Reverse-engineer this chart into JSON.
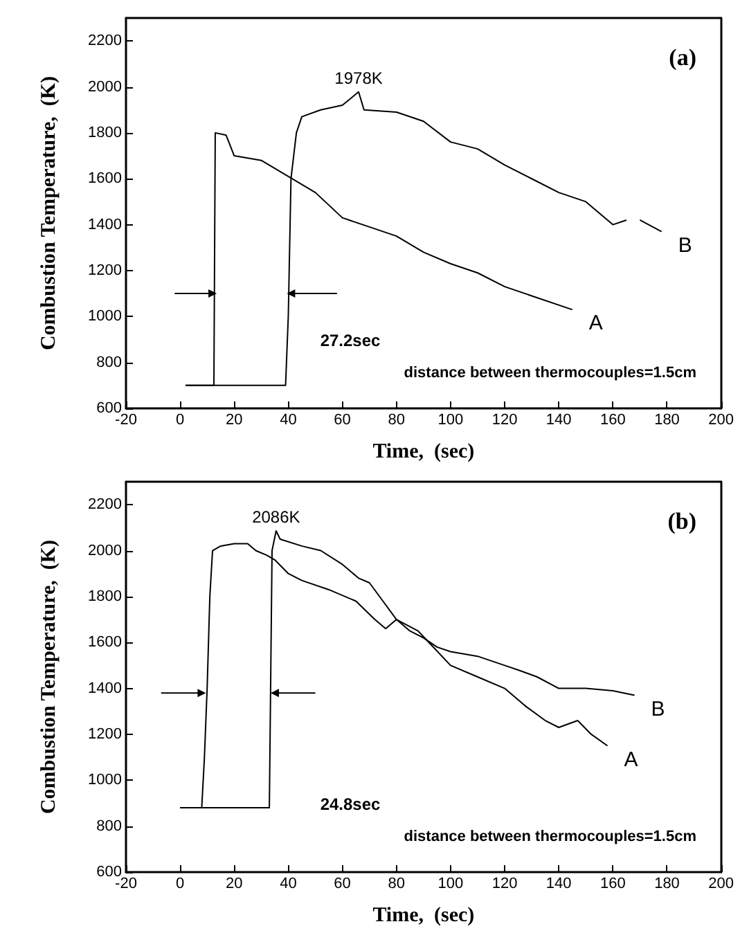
{
  "chart_data": [
    {
      "type": "line",
      "xlabel": "Time,  (sec)",
      "ylabel": "Combustion Temperature,  (K)",
      "xlim": [
        -20,
        200
      ],
      "xticks": [
        -20,
        0,
        20,
        40,
        60,
        80,
        100,
        120,
        140,
        160,
        180,
        200
      ],
      "ylim": [
        600,
        2300
      ],
      "yticks": [
        600,
        800,
        1000,
        1200,
        1400,
        1600,
        1800,
        2000,
        2200
      ],
      "grid": false,
      "legend": false,
      "marker": "none",
      "line_style": "solid",
      "series": [
        {
          "name": "A",
          "color": "#000000",
          "x": [
            2,
            12.5,
            13,
            17,
            20,
            30,
            40,
            50,
            60,
            70,
            80,
            90,
            100,
            110,
            120,
            130,
            145
          ],
          "values": [
            700,
            700,
            1800,
            1790,
            1700,
            1680,
            1610,
            1540,
            1430,
            1390,
            1350,
            1280,
            1230,
            1190,
            1130,
            1090,
            1030
          ]
        },
        {
          "name": "B",
          "color": "#000000",
          "x": [
            2,
            39,
            40,
            41,
            43,
            45,
            52,
            60,
            66,
            68,
            80,
            90,
            100,
            110,
            120,
            130,
            140,
            150,
            160,
            165,
            166,
            170,
            178
          ],
          "values": [
            700,
            700,
            1000,
            1600,
            1800,
            1870,
            1900,
            1920,
            1978,
            1900,
            1890,
            1850,
            1760,
            1730,
            1660,
            1600,
            1540,
            1500,
            1400,
            1420,
            null,
            1420,
            1370
          ]
        },
        {
          "color": "#000000",
          "marker": "triangle",
          "x": [
            -2,
            12
          ],
          "values": [
            1100,
            1100
          ]
        },
        {
          "color": "#000000",
          "marker": "triangle",
          "x": [
            58,
            41
          ],
          "values": [
            1100,
            1100
          ]
        }
      ],
      "annotations": [
        {
          "text": "1978K",
          "x": 66,
          "y": 1978
        },
        "(a)",
        "27.2sec",
        "distance between thermocouples=1.5cm"
      ]
    },
    {
      "type": "line",
      "xlabel": "Time,  (sec)",
      "ylabel": "Combustion Temperature,  (K)",
      "xlim": [
        -20,
        200
      ],
      "xticks": [
        -20,
        0,
        20,
        40,
        60,
        80,
        100,
        120,
        140,
        160,
        180,
        200
      ],
      "ylim": [
        600,
        2300
      ],
      "yticks": [
        600,
        800,
        1000,
        1200,
        1400,
        1600,
        1800,
        2000,
        2200
      ],
      "grid": false,
      "legend": false,
      "marker": "none",
      "line_style": "solid",
      "series": [
        {
          "name": "A",
          "color": "#000000",
          "x": [
            0,
            8,
            9,
            10,
            11,
            12,
            15,
            20,
            25,
            28,
            32,
            35,
            40,
            45,
            55,
            65,
            72,
            76,
            80,
            88,
            92,
            100,
            110,
            120,
            128,
            135,
            140,
            147,
            152,
            158
          ],
          "values": [
            880,
            880,
            1100,
            1400,
            1800,
            2000,
            2020,
            2030,
            2030,
            2000,
            1980,
            1960,
            1900,
            1870,
            1830,
            1780,
            1700,
            1660,
            1700,
            1650,
            1600,
            1500,
            1450,
            1400,
            1320,
            1260,
            1230,
            1260,
            1200,
            1150
          ]
        },
        {
          "name": "B",
          "color": "#000000",
          "x": [
            0,
            33,
            34,
            35.5,
            37,
            45,
            52,
            60,
            66,
            70,
            75,
            80,
            85,
            90,
            95,
            100,
            110,
            120,
            125,
            132,
            140,
            150,
            160,
            168
          ],
          "values": [
            880,
            880,
            2000,
            2086,
            2050,
            2020,
            2000,
            1940,
            1880,
            1860,
            1780,
            1700,
            1650,
            1620,
            1580,
            1560,
            1540,
            1500,
            1480,
            1450,
            1400,
            1400,
            1390,
            1370
          ]
        },
        {
          "color": "#000000",
          "marker": "triangle",
          "x": [
            -7,
            8
          ],
          "values": [
            1380,
            1380
          ]
        },
        {
          "color": "#000000",
          "marker": "triangle",
          "x": [
            50,
            35
          ],
          "values": [
            1380,
            1380
          ]
        }
      ],
      "annotations": [
        {
          "text": "2086K",
          "x": 35.5,
          "y": 2086
        },
        "(b)",
        "24.8sec",
        "distance between thermocouples=1.5cm"
      ]
    }
  ]
}
